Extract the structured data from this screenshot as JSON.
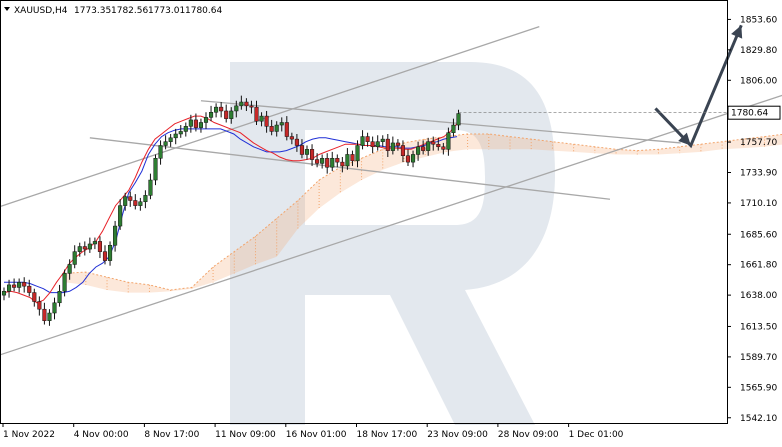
{
  "header": {
    "symbol": "XAUUSD,H4",
    "open": "1773.35",
    "high": "1782.56",
    "low": "1773.01",
    "close": "1780.64"
  },
  "colors": {
    "bull": "#2e7d32",
    "bear": "#c62828",
    "tenkan": "#e8232a",
    "kijun": "#1f2fd6",
    "cloud": "#f2a46b",
    "channel": "#a8a8a8",
    "arrow": "#3a4452",
    "watermark": "#e3e8ee",
    "price_label_bg": "#ffffff"
  },
  "chart_data": {
    "type": "candlestick",
    "symbol": "XAUUSD",
    "timeframe": "H4",
    "current_price": 1780.64,
    "current_price_label": "1780.64",
    "y_ticks": [
      "1853.60",
      "1829.80",
      "1806.00",
      "1757.70",
      "1733.90",
      "1710.10",
      "1685.60",
      "1661.80",
      "1638.00",
      "1613.50",
      "1589.70",
      "1565.90",
      "1542.10"
    ],
    "y_tick_values": [
      1853.6,
      1829.8,
      1806.0,
      1757.7,
      1733.9,
      1710.1,
      1685.6,
      1661.8,
      1638.0,
      1613.5,
      1589.7,
      1565.9,
      1542.1
    ],
    "ylim": [
      1538,
      1868
    ],
    "x_ticks": [
      "1 Nov 2022",
      "4 Nov 00:00",
      "8 Nov 17:00",
      "11 Nov 09:00",
      "16 Nov 01:00",
      "18 Nov 17:00",
      "23 Nov 09:00",
      "28 Nov 09:00",
      "1 Dec 01:00"
    ],
    "x_tick_bars": [
      0,
      14,
      28,
      42,
      56,
      70,
      84,
      98,
      112
    ],
    "candles_close": [
      1641,
      1646,
      1644,
      1648,
      1645,
      1640,
      1633,
      1627,
      1618,
      1624,
      1632,
      1641,
      1655,
      1662,
      1672,
      1676,
      1674,
      1678,
      1680,
      1672,
      1665,
      1677,
      1692,
      1708,
      1715,
      1712,
      1708,
      1711,
      1716,
      1728,
      1745,
      1755,
      1758,
      1761,
      1764,
      1766,
      1770,
      1775,
      1769,
      1773,
      1777,
      1781,
      1785,
      1782,
      1776,
      1782,
      1786,
      1789,
      1786,
      1785,
      1774,
      1778,
      1770,
      1766,
      1771,
      1773,
      1762,
      1760,
      1755,
      1748,
      1752,
      1744,
      1741,
      1745,
      1738,
      1745,
      1742,
      1739,
      1748,
      1743,
      1755,
      1762,
      1758,
      1754,
      1758,
      1760,
      1751,
      1757,
      1755,
      1747,
      1742,
      1748,
      1754,
      1751,
      1758,
      1756,
      1754,
      1752,
      1765,
      1771,
      1780
    ],
    "tenkan": [
      1640,
      1641,
      1640,
      1638,
      1636,
      1632,
      1634,
      1640,
      1648,
      1655,
      1663,
      1668,
      1672,
      1675,
      1680,
      1688,
      1698,
      1708,
      1714,
      1720,
      1730,
      1742,
      1752,
      1760,
      1764,
      1768,
      1772,
      1774,
      1776,
      1778,
      1778,
      1776,
      1773,
      1771,
      1769,
      1767,
      1765,
      1761,
      1757,
      1754,
      1751,
      1749,
      1746,
      1744,
      1743,
      1743,
      1744,
      1745,
      1748,
      1750,
      1752,
      1754,
      1756,
      1756,
      1756,
      1755,
      1755,
      1754,
      1753,
      1753,
      1753,
      1752,
      1752,
      1754,
      1756,
      1758,
      1760,
      1762,
      1766,
      1772
    ],
    "kijun": [
      1648,
      1648,
      1648,
      1648,
      1647,
      1645,
      1643,
      1640,
      1640,
      1640,
      1641,
      1644,
      1648,
      1655,
      1660,
      1663,
      1668,
      1680,
      1700,
      1718,
      1726,
      1735,
      1748,
      1756,
      1762,
      1765,
      1767,
      1768,
      1768,
      1768,
      1768,
      1768,
      1768,
      1768,
      1766,
      1764,
      1760,
      1757,
      1754,
      1752,
      1750,
      1750,
      1750,
      1751,
      1753,
      1755,
      1758,
      1760,
      1761,
      1761,
      1760,
      1759,
      1758,
      1757,
      1756,
      1755,
      1755,
      1755,
      1754,
      1754,
      1754,
      1753,
      1753,
      1754,
      1755,
      1757,
      1758,
      1760,
      1761,
      1762
    ],
    "cloud_span_a": [
      1655,
      1656,
      1652,
      1648,
      1646,
      1642,
      1644,
      1660,
      1672,
      1684,
      1698,
      1712,
      1728,
      1738,
      1745,
      1752,
      1757,
      1760,
      1762,
      1764,
      1764,
      1762,
      1760,
      1758,
      1756,
      1754,
      1752,
      1751,
      1752,
      1754,
      1756,
      1758,
      1760,
      1762,
      1764,
      1766,
      1768
    ],
    "cloud_span_b": [
      1648,
      1646,
      1642,
      1640,
      1640,
      1641,
      1643,
      1648,
      1655,
      1662,
      1668,
      1690,
      1706,
      1718,
      1728,
      1736,
      1742,
      1746,
      1750,
      1752,
      1752,
      1752,
      1752,
      1751,
      1750,
      1749,
      1748,
      1748,
      1748,
      1749,
      1750,
      1752,
      1753,
      1754,
      1756,
      1757,
      1758
    ],
    "channel_lines": [
      {
        "name": "ascending-upper",
        "from": [
          -1,
          1707
        ],
        "to": [
          106,
          1848
        ]
      },
      {
        "name": "ascending-lower",
        "from": [
          -1,
          1591
        ],
        "to": [
          173,
          1819
        ]
      },
      {
        "name": "descending-upper",
        "from": [
          39,
          1790
        ],
        "to": [
          134,
          1757
        ]
      },
      {
        "name": "descending-lower",
        "from": [
          17,
          1761
        ],
        "to": [
          120,
          1713
        ]
      }
    ],
    "forecast_arrow_points": [
      [
        129,
        1784
      ],
      [
        136,
        1755
      ],
      [
        146,
        1849
      ]
    ]
  }
}
